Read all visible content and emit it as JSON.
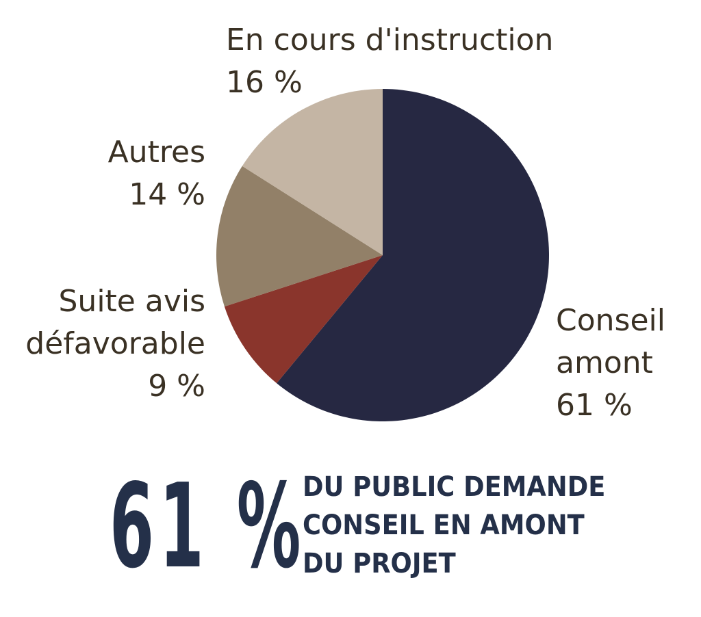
{
  "chart_data": {
    "type": "pie",
    "slices": [
      {
        "label": "Conseil amont",
        "value": 61,
        "value_text": "61 %",
        "color": "#262842"
      },
      {
        "label": "Suite avis défavorable",
        "value": 9,
        "value_text": "9 %",
        "color": "#8a352c"
      },
      {
        "label": "Autres",
        "value": 14,
        "value_text": "14 %",
        "color": "#928068"
      },
      {
        "label": "En cours d'instruction",
        "value": 16,
        "value_text": "16 %",
        "color": "#c4b5a4"
      }
    ],
    "start_angle_deg": 0,
    "direction": "clockwise"
  },
  "labels": {
    "instruction": {
      "line1": "En cours d'instruction",
      "line2": "16 %"
    },
    "autres": {
      "line1": "Autres",
      "line2": "14 %"
    },
    "suite": {
      "line1": "Suite avis",
      "line2": "défavorable",
      "line3": "9 %"
    },
    "conseil": {
      "line1": "Conseil",
      "line2": "amont",
      "line3": "61 %"
    }
  },
  "headline": {
    "number": "61 %",
    "line1": "DU PUBLIC DEMANDE",
    "line2": "CONSEIL EN AMONT",
    "line3": "DU PROJET"
  },
  "colors": {
    "accent": "#243049",
    "label_text": "#3a3124"
  }
}
